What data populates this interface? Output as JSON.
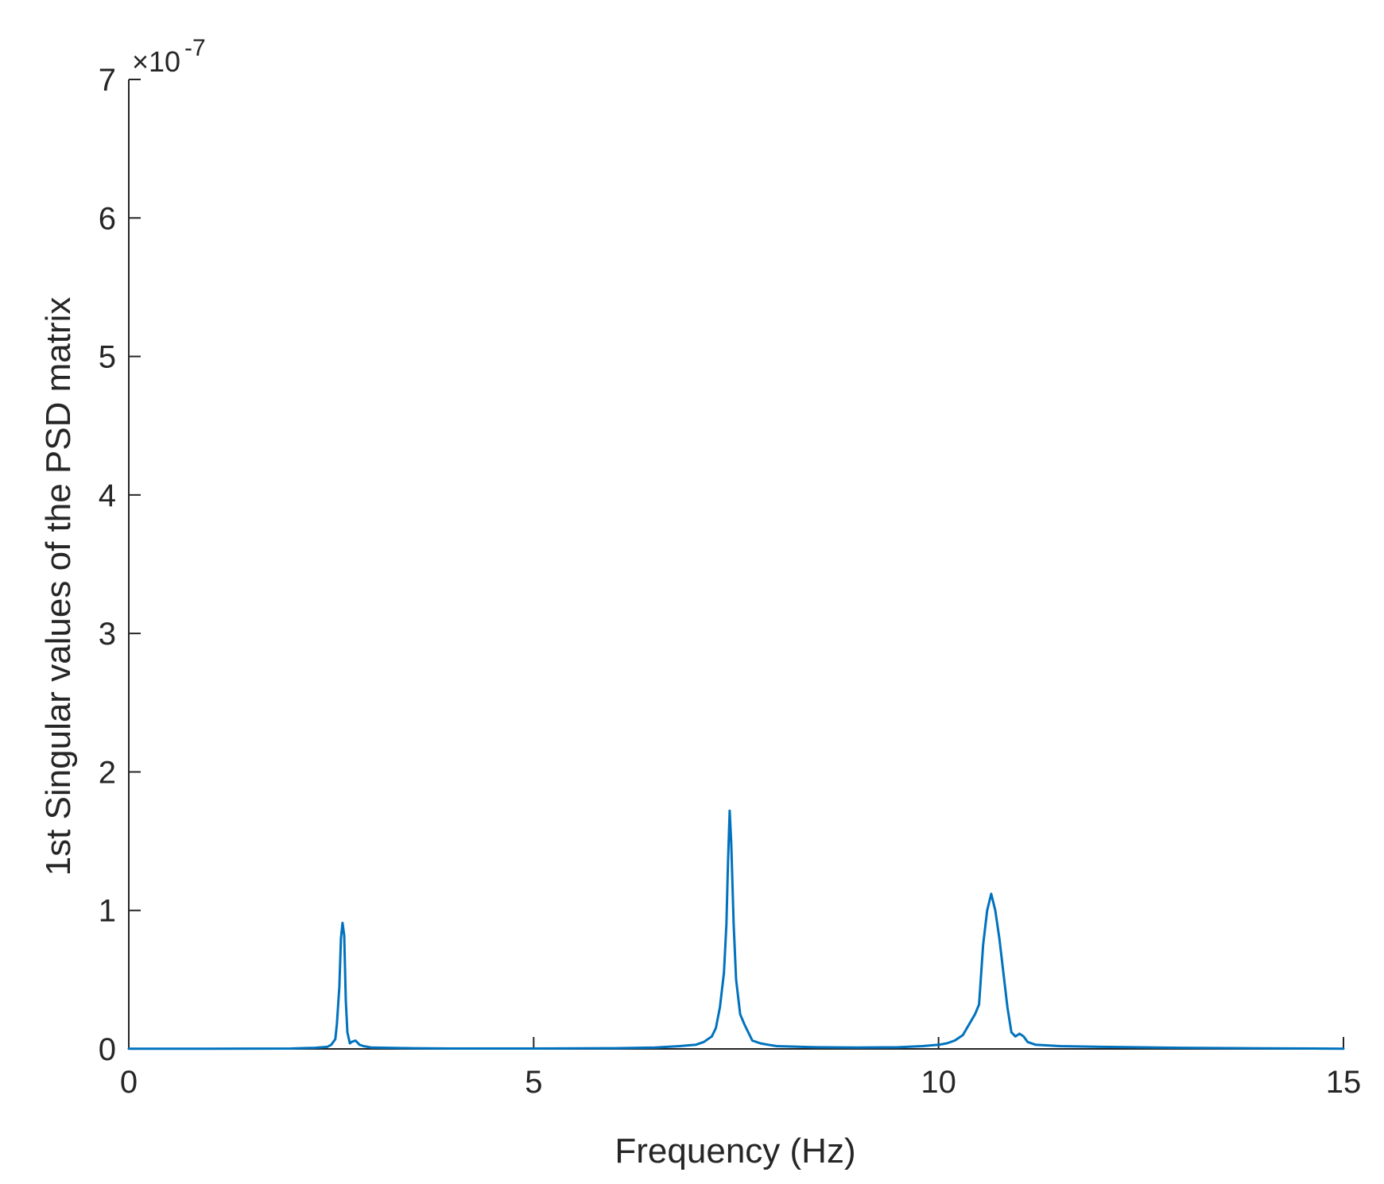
{
  "chart_data": {
    "type": "line",
    "title": "",
    "xlabel": "Frequency (Hz)",
    "ylabel": "1st Singular values of the PSD matrix",
    "xlim": [
      0,
      15
    ],
    "ylim": [
      0,
      7e-07
    ],
    "x_ticks": [
      0,
      5,
      10,
      15
    ],
    "x_tick_labels": [
      "0",
      "5",
      "10",
      "15"
    ],
    "y_ticks": [
      0,
      1e-07,
      2e-07,
      3e-07,
      4e-07,
      5e-07,
      6e-07,
      7e-07
    ],
    "y_tick_labels": [
      "0",
      "1",
      "2",
      "3",
      "4",
      "5",
      "6",
      "7"
    ],
    "y_exponent": {
      "base_text": "×10",
      "power": "-7"
    },
    "grid": false,
    "line_color": "#0072BD",
    "series": [
      {
        "x": [
          0,
          1.0,
          2.0,
          2.3,
          2.45,
          2.5,
          2.55,
          2.57,
          2.6,
          2.62,
          2.64,
          2.66,
          2.68,
          2.7,
          2.73,
          2.75,
          2.8,
          2.85,
          2.9,
          3.0,
          3.5,
          4.0,
          5.0,
          6.0,
          6.5,
          6.8,
          7.0,
          7.1,
          7.2,
          7.25,
          7.3,
          7.35,
          7.38,
          7.4,
          7.42,
          7.44,
          7.47,
          7.5,
          7.55,
          7.6,
          7.65,
          7.7,
          7.8,
          7.9,
          8.0,
          8.5,
          9.0,
          9.5,
          9.8,
          10.0,
          10.1,
          10.2,
          10.3,
          10.35,
          10.4,
          10.45,
          10.5,
          10.55,
          10.6,
          10.65,
          10.7,
          10.75,
          10.8,
          10.85,
          10.9,
          10.95,
          11.0,
          11.05,
          11.1,
          11.2,
          11.5,
          12.0,
          13.0,
          14.0,
          15.0
        ],
        "y": [
          1e-10,
          1e-10,
          3e-10,
          8e-10,
          1.5e-09,
          3e-09,
          7e-09,
          1.8e-08,
          4.5e-08,
          8e-08,
          9.1e-08,
          8.2e-08,
          3.5e-08,
          1.2e-08,
          4e-09,
          5e-09,
          6e-09,
          3e-09,
          2e-09,
          1e-09,
          5e-10,
          3e-10,
          3e-10,
          5e-10,
          1e-09,
          2e-09,
          3e-09,
          5e-09,
          9e-09,
          1.5e-08,
          3e-08,
          5.5e-08,
          9e-08,
          1.35e-07,
          1.72e-07,
          1.48e-07,
          9e-08,
          5e-08,
          2.5e-08,
          1.8e-08,
          1.2e-08,
          6e-09,
          4e-09,
          3e-09,
          2e-09,
          1.2e-09,
          1e-09,
          1.2e-09,
          2e-09,
          3e-09,
          4e-09,
          6e-09,
          1e-08,
          1.5e-08,
          2e-08,
          2.5e-08,
          3.2e-08,
          7.5e-08,
          1e-07,
          1.12e-07,
          1e-07,
          8e-08,
          5.5e-08,
          3e-08,
          1.2e-08,
          9e-09,
          1.1e-08,
          9e-09,
          5e-09,
          3e-09,
          2e-09,
          1.5e-09,
          8e-10,
          4e-10,
          2e-10
        ]
      }
    ]
  }
}
